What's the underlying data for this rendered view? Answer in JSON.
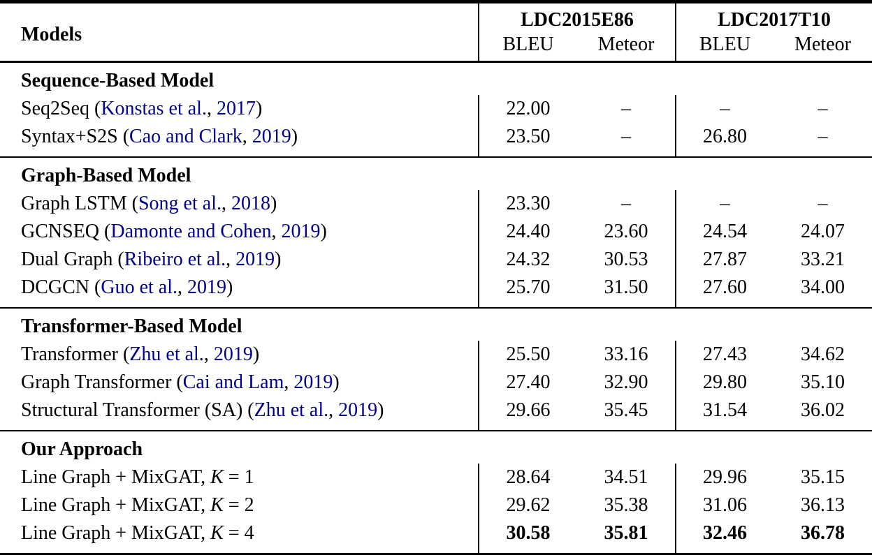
{
  "colors": {
    "text": "#000000",
    "citation_link": "#00008B",
    "background": "#FFFFFF",
    "rules": "#000000"
  },
  "table": {
    "header": {
      "models_label": "Models",
      "groups": [
        {
          "label": "LDC2015E86",
          "metrics": [
            "BLEU",
            "Meteor"
          ]
        },
        {
          "label": "LDC2017T10",
          "metrics": [
            "BLEU",
            "Meteor"
          ]
        }
      ]
    },
    "sections": [
      {
        "title": "Sequence-Based Model",
        "rows": [
          {
            "pre": "Seq2Seq (",
            "author": "Konstas et al.",
            "sep": ", ",
            "year": "2017",
            "post": ")",
            "values": [
              "22.00",
              "–",
              "–",
              "–"
            ]
          },
          {
            "pre": "Syntax+S2S (",
            "author": "Cao and Clark",
            "sep": ", ",
            "year": "2019",
            "post": ")",
            "values": [
              "23.50",
              "–",
              "26.80",
              "–"
            ]
          }
        ]
      },
      {
        "title": "Graph-Based Model",
        "rows": [
          {
            "pre": "Graph LSTM (",
            "author": "Song et al.",
            "sep": ", ",
            "year": "2018",
            "post": ")",
            "values": [
              "23.30",
              "–",
              "–",
              "–"
            ]
          },
          {
            "pre": "GCNSEQ (",
            "author": "Damonte and Cohen",
            "sep": ", ",
            "year": "2019",
            "post": ")",
            "values": [
              "24.40",
              "23.60",
              "24.54",
              "24.07"
            ]
          },
          {
            "pre": "Dual Graph (",
            "author": "Ribeiro et al.",
            "sep": ", ",
            "year": "2019",
            "post": ")",
            "values": [
              "24.32",
              "30.53",
              "27.87",
              "33.21"
            ]
          },
          {
            "pre": "DCGCN (",
            "author": "Guo et al.",
            "sep": ", ",
            "year": "2019",
            "post": ")",
            "values": [
              "25.70",
              "31.50",
              "27.60",
              "34.00"
            ]
          }
        ]
      },
      {
        "title": "Transformer-Based Model",
        "rows": [
          {
            "pre": "Transformer (",
            "author": "Zhu et al.",
            "sep": ", ",
            "year": "2019",
            "post": ")",
            "values": [
              "25.50",
              "33.16",
              "27.43",
              "34.62"
            ]
          },
          {
            "pre": "Graph Transformer (",
            "author": "Cai and Lam",
            "sep": ", ",
            "year": "2019",
            "post": ")",
            "values": [
              "27.40",
              "32.90",
              "29.80",
              "35.10"
            ]
          },
          {
            "pre": "Structural Transformer (SA) (",
            "author": "Zhu et al.",
            "sep": ", ",
            "year": "2019",
            "post": ")",
            "values": [
              "29.66",
              "35.45",
              "31.54",
              "36.02"
            ]
          }
        ]
      },
      {
        "title": "Our Approach",
        "rows": [
          {
            "pre": "Line Graph + MixGAT, ",
            "k": "K",
            "rest": " = 1",
            "values": [
              "28.64",
              "34.51",
              "29.96",
              "35.15"
            ]
          },
          {
            "pre": "Line Graph + MixGAT, ",
            "k": "K",
            "rest": " = 2",
            "values": [
              "29.62",
              "35.38",
              "31.06",
              "36.13"
            ]
          },
          {
            "pre": "Line Graph + MixGAT, ",
            "k": "K",
            "rest": " = 4",
            "bold": "true",
            "values": [
              "30.58",
              "35.81",
              "32.46",
              "36.78"
            ]
          }
        ]
      }
    ]
  }
}
